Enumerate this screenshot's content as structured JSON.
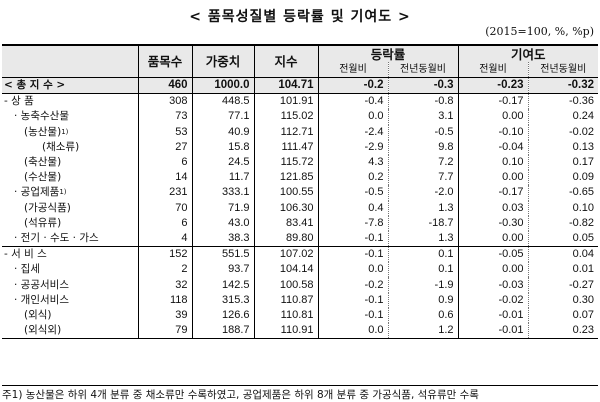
{
  "title": "< 품목성질별 등락률 및 기여도 >",
  "unit": "(2015=100, %, %p)",
  "headers": {
    "items_count": "품목수",
    "weight": "가중치",
    "index": "지수",
    "change_rate": "등락률",
    "contribution": "기여도",
    "mom": "전월비",
    "yoy": "전년동월비"
  },
  "rows": [
    {
      "label": "< 총 지 수 >",
      "sup": "",
      "count": "460",
      "weight": "1000.0",
      "index": "104.71",
      "cr_mom": "-0.2",
      "cr_yoy": "-0.3",
      "ct_mom": "-0.23",
      "ct_yoy": "-0.32"
    },
    {
      "label": "- 상       품",
      "sup": "",
      "count": "308",
      "weight": "448.5",
      "index": "101.91",
      "cr_mom": "-0.4",
      "cr_yoy": "-0.8",
      "ct_mom": "-0.17",
      "ct_yoy": "-0.36"
    },
    {
      "label": "· 농축수산물",
      "sup": "",
      "count": "73",
      "weight": "77.1",
      "index": "115.02",
      "cr_mom": "0.0",
      "cr_yoy": "3.1",
      "ct_mom": "0.00",
      "ct_yoy": "0.24"
    },
    {
      "label": "(농산물)",
      "sup": "1)",
      "count": "53",
      "weight": "40.9",
      "index": "112.71",
      "cr_mom": "-2.4",
      "cr_yoy": "-0.5",
      "ct_mom": "-0.10",
      "ct_yoy": "-0.02"
    },
    {
      "label": "(채소류)",
      "sup": "",
      "count": "27",
      "weight": "15.8",
      "index": "111.47",
      "cr_mom": "-2.9",
      "cr_yoy": "9.8",
      "ct_mom": "-0.04",
      "ct_yoy": "0.13"
    },
    {
      "label": "(축산물)",
      "sup": "",
      "count": "6",
      "weight": "24.5",
      "index": "115.72",
      "cr_mom": "4.3",
      "cr_yoy": "7.2",
      "ct_mom": "0.10",
      "ct_yoy": "0.17"
    },
    {
      "label": "(수산물)",
      "sup": "",
      "count": "14",
      "weight": "11.7",
      "index": "121.85",
      "cr_mom": "0.2",
      "cr_yoy": "7.7",
      "ct_mom": "0.00",
      "ct_yoy": "0.09"
    },
    {
      "label": "· 공업제품",
      "sup": "1)",
      "count": "231",
      "weight": "333.1",
      "index": "100.55",
      "cr_mom": "-0.5",
      "cr_yoy": "-2.0",
      "ct_mom": "-0.17",
      "ct_yoy": "-0.65"
    },
    {
      "label": "(가공식품)",
      "sup": "",
      "count": "70",
      "weight": "71.9",
      "index": "106.30",
      "cr_mom": "0.4",
      "cr_yoy": "1.3",
      "ct_mom": "0.03",
      "ct_yoy": "0.10"
    },
    {
      "label": "(석유류)",
      "sup": "",
      "count": "6",
      "weight": "43.0",
      "index": "83.41",
      "cr_mom": "-7.8",
      "cr_yoy": "-18.7",
      "ct_mom": "-0.30",
      "ct_yoy": "-0.82"
    },
    {
      "label": "· 전기 · 수도 · 가스",
      "sup": "",
      "count": "4",
      "weight": "38.3",
      "index": "89.80",
      "cr_mom": "-0.1",
      "cr_yoy": "1.3",
      "ct_mom": "0.00",
      "ct_yoy": "0.05"
    },
    {
      "label": "- 서  비  스",
      "sup": "",
      "count": "152",
      "weight": "551.5",
      "index": "107.02",
      "cr_mom": "-0.1",
      "cr_yoy": "0.1",
      "ct_mom": "-0.05",
      "ct_yoy": "0.04"
    },
    {
      "label": "· 집세",
      "sup": "",
      "count": "2",
      "weight": "93.7",
      "index": "104.14",
      "cr_mom": "0.0",
      "cr_yoy": "0.1",
      "ct_mom": "0.00",
      "ct_yoy": "0.01"
    },
    {
      "label": "· 공공서비스",
      "sup": "",
      "count": "32",
      "weight": "142.5",
      "index": "100.58",
      "cr_mom": "-0.2",
      "cr_yoy": "-1.9",
      "ct_mom": "-0.03",
      "ct_yoy": "-0.27"
    },
    {
      "label": "· 개인서비스",
      "sup": "",
      "count": "118",
      "weight": "315.3",
      "index": "110.87",
      "cr_mom": "-0.1",
      "cr_yoy": "0.9",
      "ct_mom": "-0.02",
      "ct_yoy": "0.30"
    },
    {
      "label": "(외식)",
      "sup": "",
      "count": "39",
      "weight": "126.6",
      "index": "110.81",
      "cr_mom": "-0.1",
      "cr_yoy": "0.6",
      "ct_mom": "-0.01",
      "ct_yoy": "0.07"
    },
    {
      "label": "(외식외)",
      "sup": "",
      "count": "79",
      "weight": "188.7",
      "index": "110.91",
      "cr_mom": "0.0",
      "cr_yoy": "1.2",
      "ct_mom": "-0.01",
      "ct_yoy": "0.23"
    }
  ],
  "footnote": "주1) 농산물은 하위 4개 분류 중 채소류만 수록하였고, 공업제품은 하위 8개 분류 중 가공식품, 석유류만 수록"
}
